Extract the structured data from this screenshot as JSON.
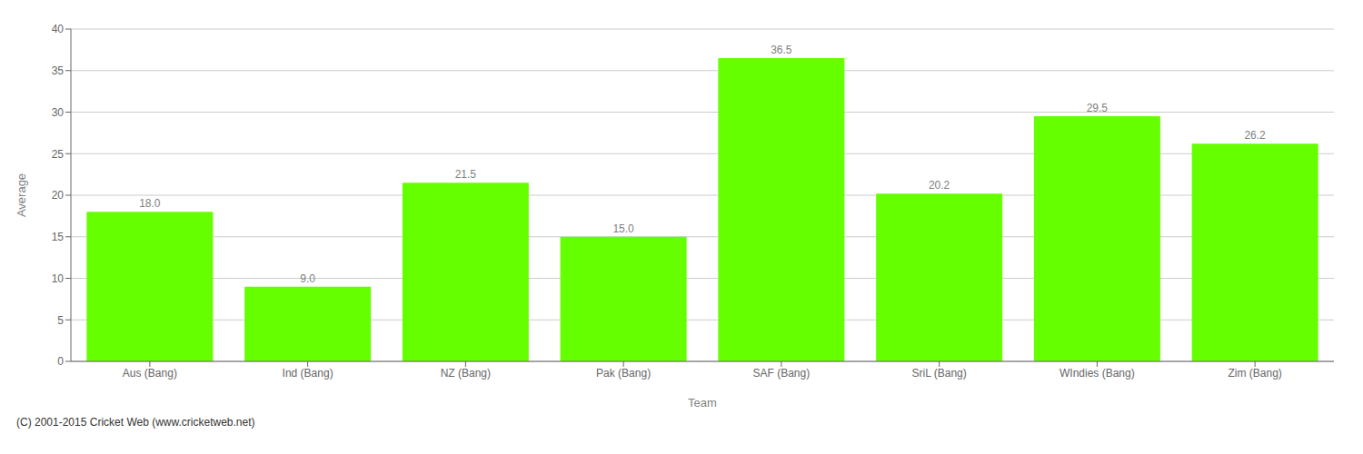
{
  "chart_data": {
    "type": "bar",
    "categories": [
      "Aus (Bang)",
      "Ind (Bang)",
      "NZ (Bang)",
      "Pak (Bang)",
      "SAF (Bang)",
      "SriL (Bang)",
      "WIndies (Bang)",
      "Zim (Bang)"
    ],
    "values": [
      18.0,
      9.0,
      21.5,
      15.0,
      36.5,
      20.2,
      29.5,
      26.2
    ],
    "value_labels": [
      "18.0",
      "9.0",
      "21.5",
      "15.0",
      "36.5",
      "20.2",
      "29.5",
      "26.2"
    ],
    "data_labels": true,
    "color": "#66ff00",
    "xlabel": "Team",
    "ylabel": "Average",
    "ylim": [
      0,
      40
    ],
    "yticks": [
      0,
      5,
      10,
      15,
      20,
      25,
      30,
      35,
      40
    ],
    "grid": true,
    "annotations": [
      "(C) 2001-2015 Cricket Web (www.cricketweb.net)"
    ]
  }
}
